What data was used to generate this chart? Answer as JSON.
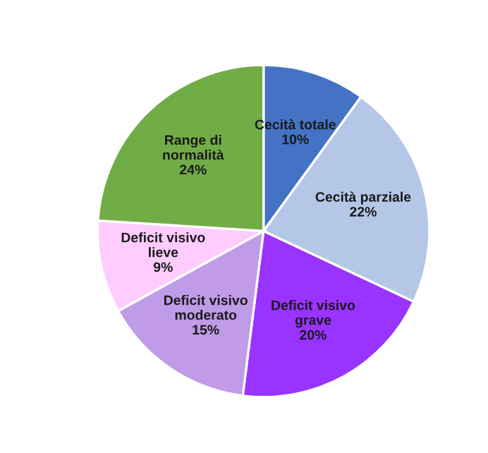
{
  "chart_data": {
    "type": "pie",
    "categories": [
      "Cecità totale",
      "Cecità parziale",
      "Deficit visivo grave",
      "Deficit visivo moderato",
      "Deficit visivo lieve",
      "Range di normalità"
    ],
    "values": [
      10,
      22,
      20,
      15,
      9,
      24
    ],
    "value_labels": [
      "10%",
      "22%",
      "20%",
      "15%",
      "9%",
      "24%"
    ],
    "colors": [
      "#4472c4",
      "#b4c7e7",
      "#9933ff",
      "#c09be8",
      "#ffccff",
      "#70ad47"
    ],
    "legend": false
  }
}
